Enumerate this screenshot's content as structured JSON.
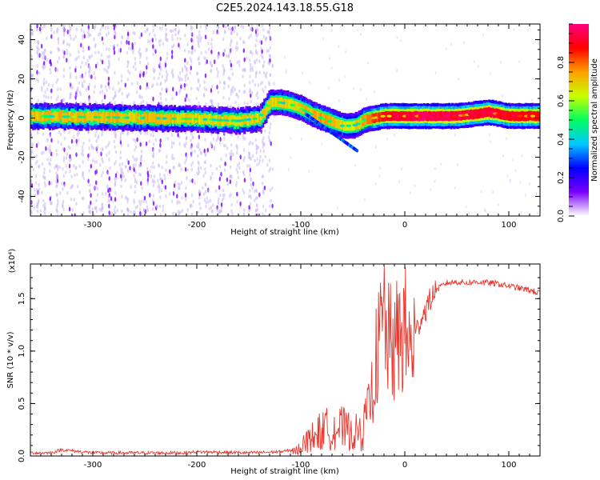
{
  "figure_title": "C2E5.2024.143.18.55.G18",
  "chart_data": [
    {
      "type": "heatmap",
      "xlabel": "Height of straight line (km)",
      "ylabel": "Frequency (Hz)",
      "xlim": [
        -360,
        130
      ],
      "ylim": [
        -50,
        48
      ],
      "x_ticks": [
        -300,
        -200,
        -100,
        0,
        100
      ],
      "x_tick_labels": [
        "-300",
        "-200",
        "-100",
        "0",
        "100"
      ],
      "y_ticks": [
        -40,
        -20,
        0,
        20,
        40
      ],
      "y_tick_labels": [
        "-40",
        "-20",
        "0",
        "20",
        "40"
      ],
      "colorbar": {
        "label": "Normalized spectral amplitude",
        "range": [
          0,
          1
        ],
        "ticks": [
          0.0,
          0.2,
          0.4,
          0.6,
          0.8
        ],
        "tick_labels": [
          "0.0",
          "0.2",
          "0.4",
          "0.6",
          "0.8"
        ],
        "colormap": [
          "#ffffff",
          "#7a00ff",
          "#0000ff",
          "#00c8ff",
          "#00ff60",
          "#c8ff00",
          "#ffa000",
          "#ff0000",
          "#ff0080"
        ]
      },
      "ridge": {
        "x": [
          -360,
          -300,
          -250,
          -200,
          -160,
          -140,
          -130,
          -120,
          -110,
          -100,
          -90,
          -80,
          -70,
          -60,
          -50,
          -45,
          -40,
          -30,
          -20,
          -10,
          0,
          20,
          50,
          80,
          100,
          130
        ],
        "y": [
          1,
          0.5,
          0,
          -0.5,
          -1.5,
          0,
          8,
          8,
          7,
          5,
          2,
          0,
          -2,
          -4,
          -4,
          -3,
          -1,
          0,
          1,
          1,
          1,
          1,
          1,
          3,
          1,
          1
        ],
        "peak_amplitude": [
          0.55,
          0.55,
          0.55,
          0.5,
          0.5,
          0.5,
          0.5,
          0.5,
          0.5,
          0.55,
          0.55,
          0.6,
          0.55,
          0.5,
          0.45,
          0.55,
          0.6,
          0.75,
          0.85,
          0.9,
          0.9,
          0.95,
          0.9,
          0.9,
          0.85,
          0.85
        ]
      },
      "noise_region_x": [
        -360,
        -125
      ]
    },
    {
      "type": "line",
      "xlabel": "Height of straight line (km)",
      "ylabel": "SNR (10 * v/v)",
      "y_multiplier": "(x10⁴)",
      "xlim": [
        -360,
        130
      ],
      "ylim": [
        0,
        1.83
      ],
      "x_ticks": [
        -300,
        -200,
        -100,
        0,
        100
      ],
      "x_tick_labels": [
        "-300",
        "-200",
        "-100",
        "0",
        "100"
      ],
      "y_ticks": [
        0.0,
        0.5,
        1.0,
        1.5
      ],
      "y_tick_labels": [
        "0.0",
        "0.5",
        "1.0",
        "1.5"
      ],
      "color": "#e8372d",
      "series": [
        {
          "x": [
            -360,
            -340,
            -330,
            -300,
            -250,
            -210,
            -200,
            -150,
            -120,
            -105,
            -100,
            -95,
            -90,
            -85,
            -80,
            -75,
            -70,
            -65,
            -60,
            -55,
            -50,
            -45,
            -40,
            -35,
            -30,
            -28,
            -25,
            -22,
            -20,
            -18,
            -15,
            -12,
            -10,
            -8,
            -5,
            0,
            5,
            10,
            15,
            20,
            25,
            30,
            40,
            50,
            60,
            70,
            80,
            90,
            100,
            110,
            120,
            130
          ],
          "y": [
            0.03,
            0.03,
            0.06,
            0.03,
            0.03,
            0.03,
            0.04,
            0.03,
            0.04,
            0.06,
            0.12,
            0.17,
            0.22,
            0.26,
            0.3,
            0.32,
            0.34,
            0.33,
            0.33,
            0.3,
            0.28,
            0.28,
            0.3,
            0.45,
            0.7,
            0.9,
            1.05,
            1.2,
            1.35,
            1.15,
            1.05,
            1.1,
            0.95,
            1.1,
            1.15,
            1.2,
            1.0,
            1.15,
            1.3,
            1.4,
            1.5,
            1.58,
            1.65,
            1.66,
            1.65,
            1.66,
            1.65,
            1.64,
            1.62,
            1.6,
            1.58,
            1.55
          ]
        }
      ]
    }
  ]
}
